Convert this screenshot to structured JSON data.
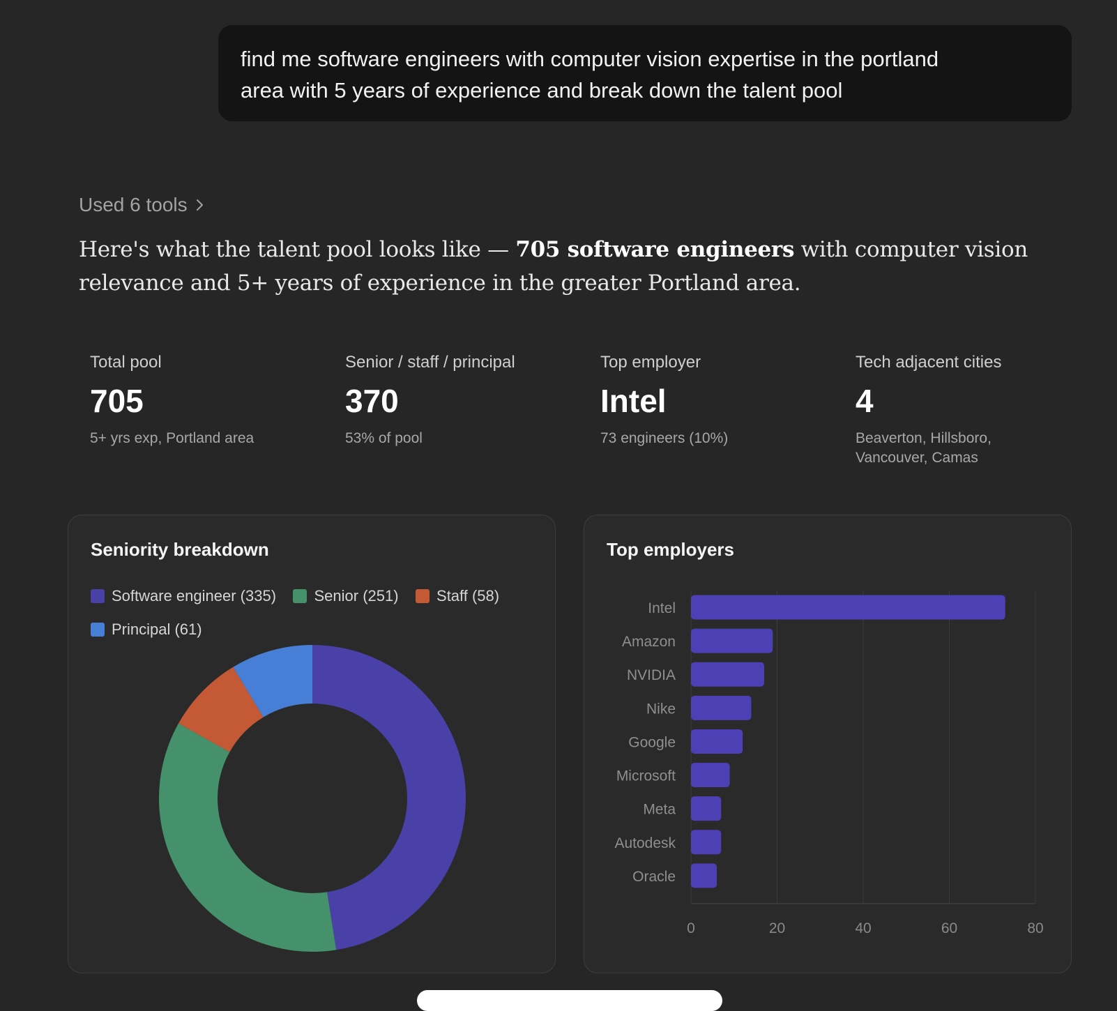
{
  "user_message": {
    "line1": "find me software engineers with computer vision expertise in the portland",
    "line2": "area with 5 years of experience and break down the talent pool"
  },
  "tools_toggle": {
    "label": "Used 6 tools",
    "icon": "chevron-right-icon"
  },
  "summary": {
    "part1": "Here's what the talent pool looks like — ",
    "bold": "705 software engineers",
    "part2": " with computer vision",
    "line2": "relevance and 5+ years of experience in the greater Portland area."
  },
  "stats": [
    {
      "label": "Total pool",
      "value": "705",
      "sub": "5+ yrs exp, Portland area"
    },
    {
      "label": "Senior / staff / principal",
      "value": "370",
      "sub": "53% of pool"
    },
    {
      "label": "Top employer",
      "value": "Intel",
      "sub": "73 engineers (10%)"
    },
    {
      "label": "Tech adjacent cities",
      "value": "4",
      "sub": "Beaverton, Hillsboro,\nVancouver, Camas",
      "sub1": "Beaverton, Hillsboro,",
      "sub2": "Vancouver, Camas"
    }
  ],
  "colors": {
    "software_engineer": "#4940a8",
    "senior": "#44916b",
    "staff": "#c45a35",
    "principal": "#477fd6",
    "bar": "#4d40b5"
  },
  "chart_data": [
    {
      "type": "pie",
      "variant": "donut",
      "title": "Seniority breakdown",
      "legend_placement": "top-left",
      "labels": [
        "Software engineer (335)",
        "Senior (251)",
        "Staff (58)",
        "Principal (61)"
      ],
      "categories": [
        "Software engineer",
        "Senior",
        "Staff",
        "Principal"
      ],
      "values": [
        335,
        251,
        58,
        61
      ]
    },
    {
      "type": "bar",
      "orientation": "horizontal",
      "title": "Top employers",
      "categories": [
        "Intel",
        "Amazon",
        "NVIDIA",
        "Nike",
        "Google",
        "Microsoft",
        "Meta",
        "Autodesk",
        "Oracle"
      ],
      "values": [
        73,
        19,
        17,
        14,
        12,
        9,
        7,
        7,
        6
      ],
      "xlim": [
        0,
        80
      ],
      "xticks": [
        0,
        20,
        40,
        60,
        80
      ],
      "grid": true
    }
  ]
}
